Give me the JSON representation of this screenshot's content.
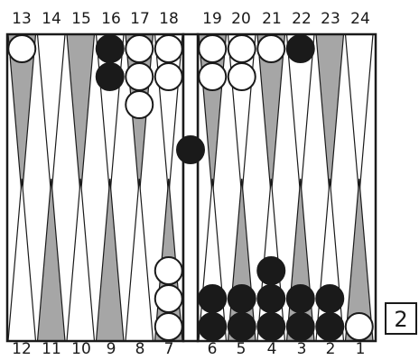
{
  "top_point_labels": [
    "13",
    "14",
    "15",
    "16",
    "17",
    "18",
    "19",
    "20",
    "21",
    "22",
    "23",
    "24"
  ],
  "bottom_point_labels": [
    "12",
    "11",
    "10",
    "9",
    "8",
    "7",
    "6",
    "5",
    "4",
    "3",
    "2",
    "1"
  ],
  "doubling_cube": {
    "value": "2"
  },
  "colors": {
    "board_outline": "#1a1a1a",
    "point_dark": "#a6a6a6",
    "point_light": "#ffffff",
    "checker_black": "#1a1a1a",
    "checker_white": "#ffffff"
  },
  "checkers": {
    "white": {
      "13": 1,
      "17": 3,
      "18": 2,
      "19": 2,
      "20": 2,
      "21": 1,
      "7": 3,
      "1": 1
    },
    "black": {
      "16": 2,
      "22": 1,
      "6": 2,
      "5": 2,
      "4": 3,
      "3": 2,
      "2": 2
    },
    "black_on_bar": 1
  }
}
